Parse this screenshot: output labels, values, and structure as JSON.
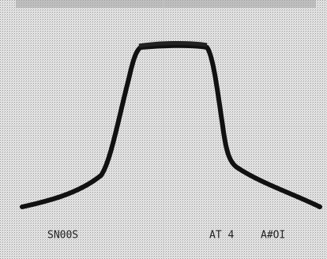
{
  "screen": {
    "labels": {
      "timebase": "SN00S",
      "trigger": "AT 4",
      "scale": "A#OI"
    }
  }
}
